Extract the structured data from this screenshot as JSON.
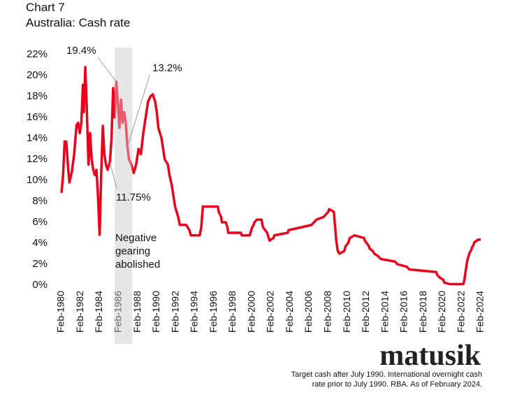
{
  "chart_data": {
    "type": "line",
    "title": "Chart 7",
    "subtitle": "Australia: Cash rate",
    "source_logo": "matusik",
    "footnote": [
      "Target cash after July 1990.  International overnight cash",
      "rate prior to July 1990.  RBA.  As of February 2024."
    ],
    "color": "#e8001c",
    "xlim": [
      "1980-02",
      "2024-02"
    ],
    "ylim": [
      0,
      22
    ],
    "yticks": [
      {
        "value": 0,
        "label": "0%"
      },
      {
        "value": 2,
        "label": "2%"
      },
      {
        "value": 4,
        "label": "4%"
      },
      {
        "value": 6,
        "label": "6%"
      },
      {
        "value": 8,
        "label": "8%"
      },
      {
        "value": 10,
        "label": "10%"
      },
      {
        "value": 12,
        "label": "12%"
      },
      {
        "value": 14,
        "label": "14%"
      },
      {
        "value": 16,
        "label": "16%"
      },
      {
        "value": 18,
        "label": "18%"
      },
      {
        "value": 20,
        "label": "20%"
      },
      {
        "value": 22,
        "label": "22%"
      }
    ],
    "xticks": [
      {
        "value": "1980-02",
        "label": "Feb-1980"
      },
      {
        "value": "1982-02",
        "label": "Feb-1982"
      },
      {
        "value": "1984-02",
        "label": "Feb-1984"
      },
      {
        "value": "1986-02",
        "label": "Feb-1986"
      },
      {
        "value": "1988-02",
        "label": "Feb-1988"
      },
      {
        "value": "1990-02",
        "label": "Feb-1990"
      },
      {
        "value": "1992-02",
        "label": "Feb-1992"
      },
      {
        "value": "1994-02",
        "label": "Feb-1994"
      },
      {
        "value": "1996-02",
        "label": "Feb-1996"
      },
      {
        "value": "1998-02",
        "label": "Feb-1998"
      },
      {
        "value": "2000-02",
        "label": "Feb-2000"
      },
      {
        "value": "2002-02",
        "label": "Feb-2002"
      },
      {
        "value": "2004-02",
        "label": "Feb-2004"
      },
      {
        "value": "2006-02",
        "label": "Feb-2006"
      },
      {
        "value": "2008-02",
        "label": "Feb-2008"
      },
      {
        "value": "2010-02",
        "label": "Feb-2010"
      },
      {
        "value": "2012-02",
        "label": "Feb-2012"
      },
      {
        "value": "2014-02",
        "label": "Feb-2014"
      },
      {
        "value": "2016-02",
        "label": "Feb-2016"
      },
      {
        "value": "2018-02",
        "label": "Feb-2018"
      },
      {
        "value": "2020-02",
        "label": "Feb-2020"
      },
      {
        "value": "2022-02",
        "label": "Feb-2022"
      },
      {
        "value": "2024-02",
        "label": "Feb-2024"
      }
    ],
    "shaded_period": {
      "x": [
        "1985-09",
        "1987-07"
      ],
      "label": [
        "Negative",
        "gearing",
        "abolished"
      ]
    },
    "annotations": [
      {
        "label": "19.4%",
        "x": "1985-11",
        "y": 19.4
      },
      {
        "label": "13.2%",
        "x": "1987-01",
        "y": 13.2
      },
      {
        "label": "11.75%",
        "x": "1985-03",
        "y": 11.75
      }
    ],
    "x": [
      "1980-02",
      "1980-04",
      "1980-06",
      "1980-08",
      "1980-10",
      "1980-12",
      "1981-03",
      "1981-06",
      "1981-09",
      "1981-11",
      "1982-01",
      "1982-03",
      "1982-05",
      "1982-06",
      "1982-08",
      "1982-10",
      "1982-12",
      "1983-02",
      "1983-04",
      "1983-06",
      "1983-08",
      "1983-10",
      "1983-12",
      "1984-02",
      "1984-04",
      "1984-06",
      "1984-08",
      "1984-10",
      "1984-12",
      "1985-03",
      "1985-05",
      "1985-07",
      "1985-09",
      "1985-11",
      "1986-01",
      "1986-03",
      "1986-05",
      "1986-07",
      "1986-09",
      "1986-11",
      "1987-01",
      "1987-03",
      "1987-06",
      "1987-09",
      "1987-12",
      "1988-03",
      "1988-06",
      "1988-09",
      "1988-12",
      "1989-03",
      "1989-06",
      "1989-09",
      "1989-12",
      "1990-02",
      "1990-04",
      "1990-08",
      "1990-10",
      "1990-12",
      "1991-04",
      "1991-06",
      "1991-09",
      "1991-11",
      "1992-01",
      "1992-05",
      "1992-07",
      "1993-03",
      "1993-07",
      "1993-09",
      "1994-08",
      "1994-10",
      "1994-12",
      "1996-07",
      "1996-08",
      "1996-11",
      "1996-12",
      "1997-05",
      "1997-07",
      "1997-08",
      "1998-12",
      "1999-01",
      "1999-11",
      "1999-12",
      "2000-02",
      "2000-04",
      "2000-05",
      "2000-08",
      "2001-02",
      "2001-03",
      "2001-04",
      "2001-09",
      "2001-10",
      "2001-12",
      "2002-05",
      "2002-06",
      "2003-11",
      "2003-12",
      "2005-03",
      "2006-05",
      "2006-08",
      "2006-11",
      "2007-08",
      "2007-11",
      "2008-02",
      "2008-03",
      "2008-09",
      "2008-10",
      "2008-11",
      "2008-12",
      "2009-02",
      "2009-04",
      "2009-10",
      "2009-11",
      "2009-12",
      "2010-03",
      "2010-04",
      "2010-05",
      "2010-11",
      "2011-11",
      "2011-12",
      "2012-05",
      "2012-06",
      "2012-10",
      "2012-12",
      "2013-05",
      "2013-08",
      "2015-02",
      "2015-05",
      "2016-05",
      "2016-08",
      "2019-06",
      "2019-07",
      "2019-10",
      "2020-03",
      "2020-04",
      "2020-11",
      "2022-04",
      "2022-05",
      "2022-06",
      "2022-07",
      "2022-08",
      "2022-09",
      "2022-10",
      "2022-12",
      "2023-02",
      "2023-03",
      "2023-05",
      "2023-06",
      "2023-11",
      "2024-02"
    ],
    "values": [
      8.8,
      10.5,
      13.7,
      13.7,
      11.5,
      9.8,
      10.8,
      12.5,
      15.3,
      15.5,
      14.5,
      15.5,
      19.1,
      16.5,
      20.8,
      16.5,
      11.5,
      14.5,
      12.0,
      11.0,
      10.5,
      11.0,
      8.5,
      4.8,
      10.5,
      15.2,
      12.5,
      11.5,
      11.0,
      11.75,
      14.0,
      18.8,
      16.0,
      19.4,
      17.5,
      15.0,
      17.7,
      15.5,
      16.5,
      15.5,
      13.2,
      12.0,
      11.5,
      10.7,
      11.5,
      13.0,
      12.5,
      14.5,
      16.0,
      17.5,
      18.0,
      18.2,
      17.5,
      16.5,
      15.0,
      14.0,
      13.0,
      12.0,
      11.5,
      10.5,
      9.5,
      8.5,
      7.5,
      6.5,
      5.75,
      5.75,
      5.25,
      4.75,
      4.75,
      5.5,
      7.5,
      7.5,
      7.0,
      6.5,
      6.0,
      6.0,
      5.5,
      5.0,
      5.0,
      4.75,
      4.75,
      5.0,
      5.5,
      5.75,
      6.0,
      6.25,
      6.25,
      5.75,
      5.5,
      5.0,
      4.75,
      4.25,
      4.5,
      4.75,
      5.0,
      5.25,
      5.5,
      5.75,
      6.0,
      6.25,
      6.5,
      6.75,
      7.0,
      7.25,
      7.0,
      6.0,
      5.25,
      4.25,
      3.25,
      3.0,
      3.25,
      3.5,
      3.75,
      4.0,
      4.25,
      4.5,
      4.75,
      4.5,
      4.25,
      3.75,
      3.5,
      3.25,
      3.0,
      2.75,
      2.5,
      2.25,
      2.0,
      1.75,
      1.5,
      1.25,
      1.0,
      0.75,
      0.5,
      0.25,
      0.1,
      0.1,
      0.35,
      0.85,
      1.35,
      1.85,
      2.35,
      2.6,
      3.1,
      3.35,
      3.6,
      3.85,
      4.1,
      4.35,
      4.35
    ]
  }
}
